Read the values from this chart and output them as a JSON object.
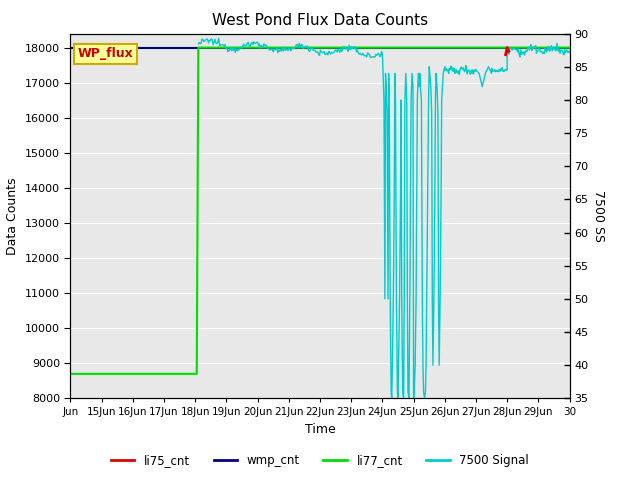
{
  "title": "West Pond Flux Data Counts",
  "xlabel": "Time",
  "ylabel_left": "Data Counts",
  "ylabel_right": "7500 SS",
  "ylim_left": [
    8000,
    18400
  ],
  "ylim_right": [
    35,
    90
  ],
  "yticks_left": [
    8000,
    9000,
    10000,
    11000,
    12000,
    13000,
    14000,
    15000,
    16000,
    17000,
    18000
  ],
  "yticks_right": [
    35,
    40,
    45,
    50,
    55,
    60,
    65,
    70,
    75,
    80,
    85,
    90
  ],
  "xtick_labels": [
    "Jun",
    "15Jun",
    "16Jun",
    "17Jun",
    "18Jun",
    "19Jun",
    "20Jun",
    "21Jun",
    "22Jun",
    "23Jun",
    "24Jun",
    "25Jun",
    "26Jun",
    "27Jun",
    "28Jun",
    "29Jun",
    "30"
  ],
  "colors": {
    "li75_cnt": "#dd0000",
    "wmp_cnt": "#000088",
    "li77_cnt": "#00dd00",
    "signal_7500": "#00cccc",
    "background": "#e8e8e8",
    "wp_flux_box_bg": "#ffff99",
    "wp_flux_box_border": "#ccaa00",
    "wp_flux_text": "#cc0000"
  },
  "legend": {
    "li75_cnt": "li75_cnt",
    "wmp_cnt": "wmp_cnt",
    "li77_cnt": "li77_cnt",
    "signal_7500": "7500 Signal"
  },
  "annotation_box": "WP_flux"
}
